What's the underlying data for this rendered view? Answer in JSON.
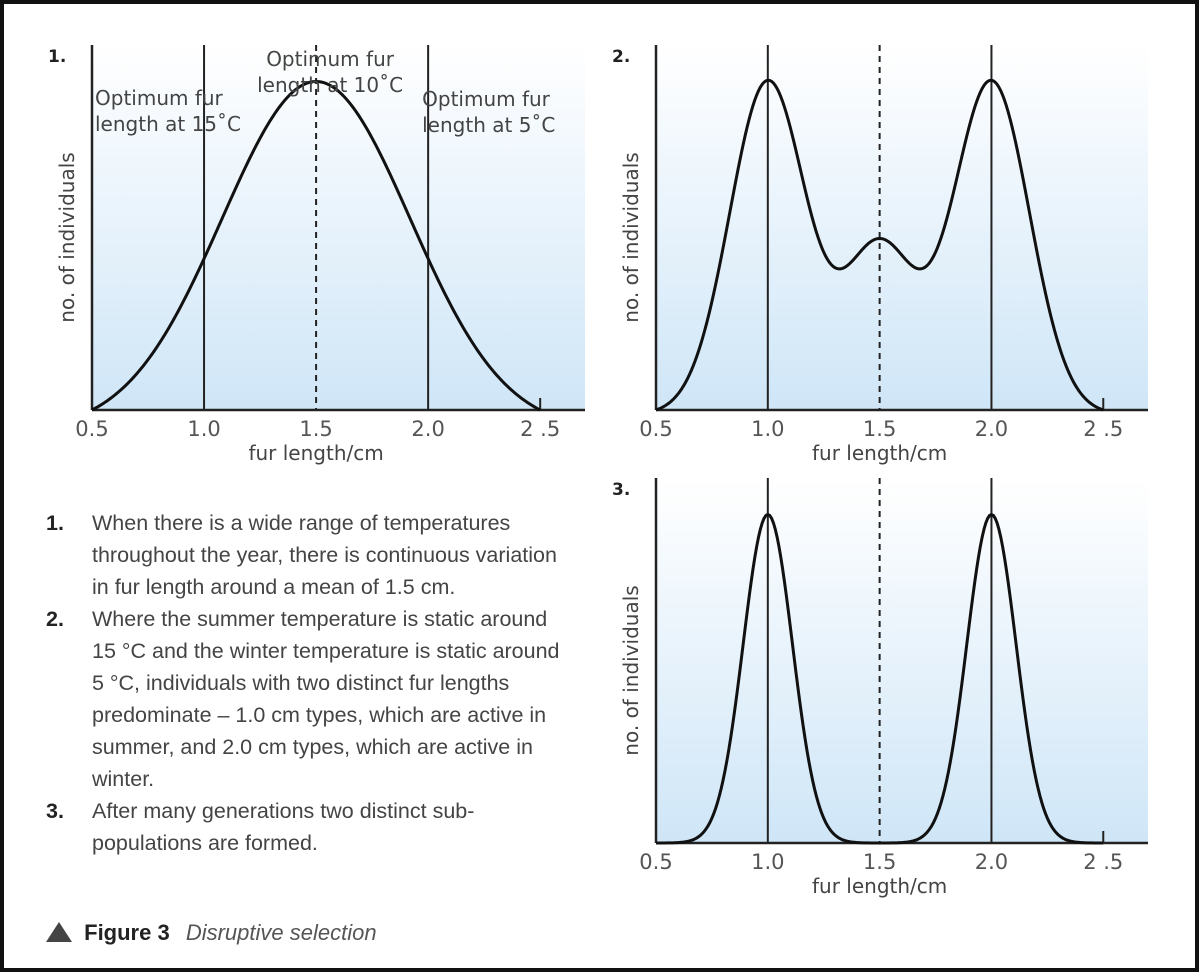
{
  "chart_data": [
    {
      "type": "line",
      "panel": "1.",
      "x": [
        0.5,
        1.0,
        1.5,
        2.0,
        2.5
      ],
      "x_ticks": [
        "0.5",
        "1.0",
        "1.5",
        "2.0",
        "2 .5"
      ],
      "xlabel": "fur length/cm",
      "ylabel": "no. of individuals",
      "xlim": [
        0.5,
        2.7
      ],
      "ylim": [
        0,
        1
      ],
      "curve": {
        "shape": "unimodal",
        "peak": 1.5,
        "sigma": 0.42,
        "height": 0.9
      },
      "markers": [
        {
          "x": 1.0,
          "style": "solid"
        },
        {
          "x": 1.5,
          "style": "dashed"
        },
        {
          "x": 2.0,
          "style": "solid"
        }
      ],
      "annotations": [
        {
          "lines": [
            "Optimum fur",
            "length at 15˚C"
          ],
          "x": 1.0,
          "anchor": "left-of-line"
        },
        {
          "lines": [
            "Optimum fur",
            "length at 10˚C"
          ],
          "x": 1.5,
          "anchor": "above-peak"
        },
        {
          "lines": [
            "Optimum fur",
            "length at 5˚C"
          ],
          "x": 2.0,
          "anchor": "right-of-line"
        }
      ]
    },
    {
      "type": "line",
      "panel": "2.",
      "x": [
        0.5,
        1.0,
        1.5,
        2.0,
        2.5
      ],
      "x_ticks": [
        "0.5",
        "1.0",
        "1.5",
        "2.0",
        "2 .5"
      ],
      "xlabel": "fur length/cm",
      "ylabel": "no. of individuals",
      "xlim": [
        0.5,
        2.7
      ],
      "ylim": [
        0,
        1
      ],
      "curve": {
        "shape": "bimodal",
        "peaks": [
          1.0,
          2.0
        ],
        "sigma": 0.17,
        "height": 0.9,
        "trough_at_1_5": 0.47
      },
      "markers": [
        {
          "x": 1.0,
          "style": "solid"
        },
        {
          "x": 1.5,
          "style": "dashed"
        },
        {
          "x": 2.0,
          "style": "solid"
        }
      ]
    },
    {
      "type": "line",
      "panel": "3.",
      "x": [
        0.5,
        1.0,
        1.5,
        2.0,
        2.5
      ],
      "x_ticks": [
        "0.5",
        "1.0",
        "1.5",
        "2.0",
        "2 .5"
      ],
      "xlabel": "fur length/cm",
      "ylabel": "no. of individuals",
      "xlim": [
        0.5,
        2.7
      ],
      "ylim": [
        0,
        1
      ],
      "curve": {
        "shape": "bimodal-separated",
        "peaks": [
          1.0,
          2.0
        ],
        "sigma": 0.11,
        "height": 0.9,
        "trough_at_1_5": 0.0
      },
      "markers": [
        {
          "x": 1.0,
          "style": "solid"
        },
        {
          "x": 1.5,
          "style": "dashed"
        },
        {
          "x": 2.0,
          "style": "solid"
        }
      ]
    }
  ],
  "notes": [
    {
      "num": "1.",
      "text": "When there is a wide range of temperatures throughout the year, there is continuous variation in fur length around a mean of 1.5 cm."
    },
    {
      "num": "2.",
      "text": "Where the summer temperature is static around 15 °C and the winter temperature is static around 5 °C, individuals with two distinct fur lengths predominate – 1.0 cm types, which are active in summer, and 2.0 cm types, which are active in winter."
    },
    {
      "num": "3.",
      "text": "After many generations two distinct sub-populations are formed."
    }
  ],
  "caption": {
    "label": "Figure 3",
    "title": "Disruptive selection"
  },
  "colors": {
    "plot_bg_top": "#ffffff",
    "plot_bg_bottom": "#cfe6f7",
    "curve": "#111111",
    "axis": "#222222",
    "text": "#444444"
  }
}
